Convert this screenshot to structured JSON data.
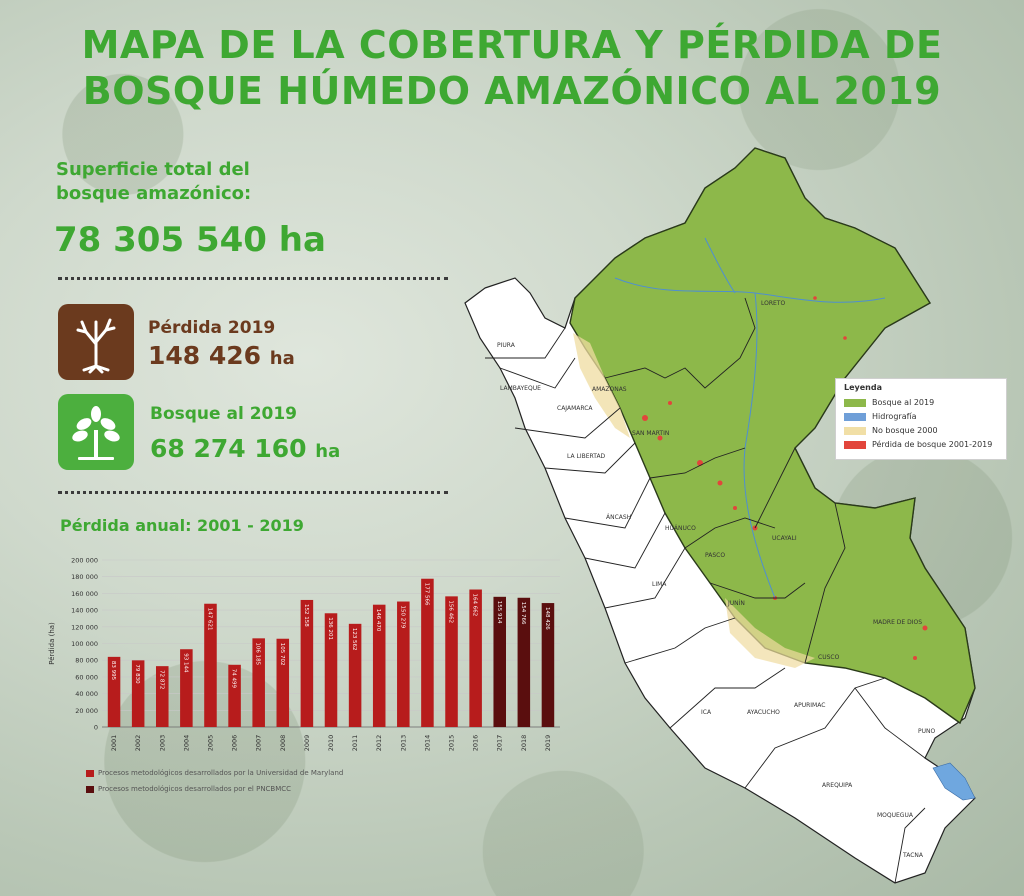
{
  "title": {
    "line1": "MAPA DE LA COBERTURA Y PÉRDIDA DE",
    "line2": "BOSQUE HÚMEDO AMAZÓNICO AL 2019"
  },
  "superficie": {
    "label": "Superficie total del bosque amazónico:",
    "value": "78 305 540 ha"
  },
  "perdida": {
    "label": "Pérdida 2019",
    "value": "148 426",
    "unit": "ha",
    "icon": "dead-tree-icon",
    "color": "#6b3a1e"
  },
  "bosque": {
    "label": "Bosque al 2019",
    "value": "68 274 160",
    "unit": "ha",
    "icon": "tree-icon",
    "color": "#4caf3e"
  },
  "chart_title": "Pérdida anual: 2001 - 2019",
  "chart_data": {
    "type": "bar",
    "categories": [
      "2001",
      "2002",
      "2003",
      "2004",
      "2005",
      "2006",
      "2007",
      "2008",
      "2009",
      "2010",
      "2011",
      "2012",
      "2013",
      "2014",
      "2015",
      "2016",
      "2017",
      "2018",
      "2019"
    ],
    "values": [
      83995,
      79830,
      72872,
      93144,
      147621,
      74499,
      106185,
      105702,
      152158,
      136201,
      123562,
      146470,
      150279,
      177566,
      156462,
      164662,
      155914,
      154766,
      148426
    ],
    "data_labels": [
      "83 995",
      "79 830",
      "72 872",
      "93 144",
      "147 621",
      "74 499",
      "106 185",
      "105 702",
      "152 158",
      "136 201",
      "123 562",
      "146 470",
      "150 279",
      "177 566",
      "156 462",
      "164 662",
      "155 914",
      "154 766",
      "148 426"
    ],
    "source": [
      "UMD",
      "UMD",
      "UMD",
      "UMD",
      "UMD",
      "UMD",
      "UMD",
      "UMD",
      "UMD",
      "UMD",
      "UMD",
      "UMD",
      "UMD",
      "UMD",
      "UMD",
      "UMD",
      "PNCBMCC",
      "PNCBMCC",
      "PNCBMCC"
    ],
    "ylabel": "Pérdida (ha)",
    "ylim": [
      0,
      200000
    ],
    "yticks": [
      0,
      20000,
      40000,
      60000,
      80000,
      100000,
      120000,
      140000,
      160000,
      180000,
      200000
    ],
    "ytick_labels": [
      "0",
      "20 000",
      "40 000",
      "60 000",
      "80 000",
      "100 000",
      "120 000",
      "140 000",
      "160 000",
      "180 000",
      "200 000"
    ],
    "grid": true,
    "colors": {
      "UMD": "#b71c1c",
      "PNCBMCC": "#5a0e0e"
    },
    "legend": [
      {
        "key": "UMD",
        "label": "Procesos metodológicos desarrollados por la Universidad de Maryland"
      },
      {
        "key": "PNCBMCC",
        "label": "Procesos metodológicos desarrollados por el PNCBMCC"
      }
    ]
  },
  "map": {
    "legend_title": "Leyenda",
    "legend_items": [
      {
        "label": "Bosque al 2019",
        "color": "#8db84a"
      },
      {
        "label": "Hidrografía",
        "color": "#6f9fd8"
      },
      {
        "label": "No bosque 2000",
        "color": "#f1dfa6"
      },
      {
        "label": "Pérdida de bosque 2001-2019",
        "color": "#e2453b"
      }
    ],
    "regions": [
      "PIURA",
      "LAMBAYEQUE",
      "AMAZONAS",
      "CAJAMARCA",
      "SAN MARTIN",
      "LA LIBERTAD",
      "LORETO",
      "ÁNCASH",
      "HUÁNUCO",
      "UCAYALI",
      "PASCO",
      "LIMA",
      "JUNÍN",
      "MADRE DE DIOS",
      "CUSCO",
      "ICA",
      "AYACUCHO",
      "APURIMAC",
      "PUNO",
      "AREQUIPA",
      "MOQUEGUA",
      "TACNA"
    ]
  }
}
